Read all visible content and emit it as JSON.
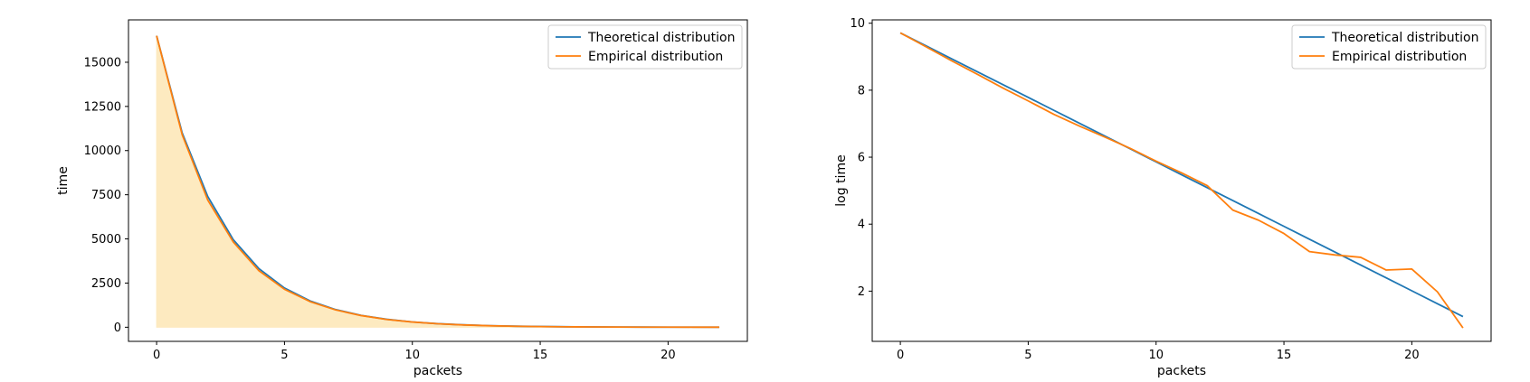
{
  "chart_data": [
    {
      "type": "area",
      "title": "",
      "xlabel": "packets",
      "ylabel": "time",
      "xlim": [
        -1.1,
        23.1
      ],
      "ylim": [
        -800,
        17400
      ],
      "xticks": [
        0,
        5,
        10,
        15,
        20
      ],
      "yticks": [
        0,
        2500,
        5000,
        7500,
        10000,
        12500,
        15000
      ],
      "grid": false,
      "legend": "top-right",
      "fill": {
        "series": "Empirical distribution",
        "color": "#fde9bd"
      },
      "x": [
        0,
        1,
        2,
        3,
        4,
        5,
        6,
        7,
        8,
        9,
        10,
        11,
        12,
        13,
        14,
        15,
        16,
        17,
        18,
        19,
        20,
        21,
        22
      ],
      "series": [
        {
          "name": "Theoretical distribution",
          "color": "#1f77b4",
          "values": [
            16500,
            11000,
            7400,
            4950,
            3320,
            2220,
            1490,
            1000,
            670,
            450,
            300,
            200,
            135,
            90,
            60,
            40,
            27,
            18,
            12,
            8,
            5,
            4,
            2
          ]
        },
        {
          "name": "Empirical distribution",
          "color": "#ff7f0e",
          "values": [
            16500,
            10900,
            7200,
            4820,
            3200,
            2150,
            1450,
            980,
            660,
            440,
            295,
            195,
            130,
            85,
            58,
            38,
            25,
            17,
            11,
            7,
            5,
            3,
            2
          ]
        }
      ]
    },
    {
      "type": "line",
      "title": "",
      "xlabel": "packets",
      "ylabel": "log time",
      "xlim": [
        -1.1,
        23.1
      ],
      "ylim": [
        0.5,
        10.1
      ],
      "xticks": [
        0,
        5,
        10,
        15,
        20
      ],
      "yticks": [
        2,
        4,
        6,
        8,
        10
      ],
      "grid": false,
      "legend": "top-right",
      "x": [
        0,
        1,
        2,
        3,
        4,
        5,
        6,
        7,
        8,
        9,
        10,
        11,
        12,
        13,
        14,
        15,
        16,
        17,
        18,
        19,
        20,
        21,
        22
      ],
      "series": [
        {
          "name": "Theoretical distribution",
          "color": "#1f77b4",
          "values": [
            9.71,
            9.325,
            8.94,
            8.555,
            8.17,
            7.785,
            7.4,
            7.015,
            6.63,
            6.245,
            5.86,
            5.475,
            5.09,
            4.705,
            4.32,
            3.935,
            3.55,
            3.165,
            2.78,
            2.395,
            2.01,
            1.625,
            1.24
          ]
        },
        {
          "name": "Empirical distribution",
          "color": "#ff7f0e",
          "values": [
            9.71,
            9.3,
            8.88,
            8.48,
            8.07,
            7.68,
            7.28,
            6.93,
            6.6,
            6.26,
            5.88,
            5.53,
            5.15,
            4.42,
            4.12,
            3.72,
            3.18,
            3.08,
            3.01,
            2.63,
            2.66,
            1.98,
            0.9
          ]
        }
      ]
    }
  ]
}
